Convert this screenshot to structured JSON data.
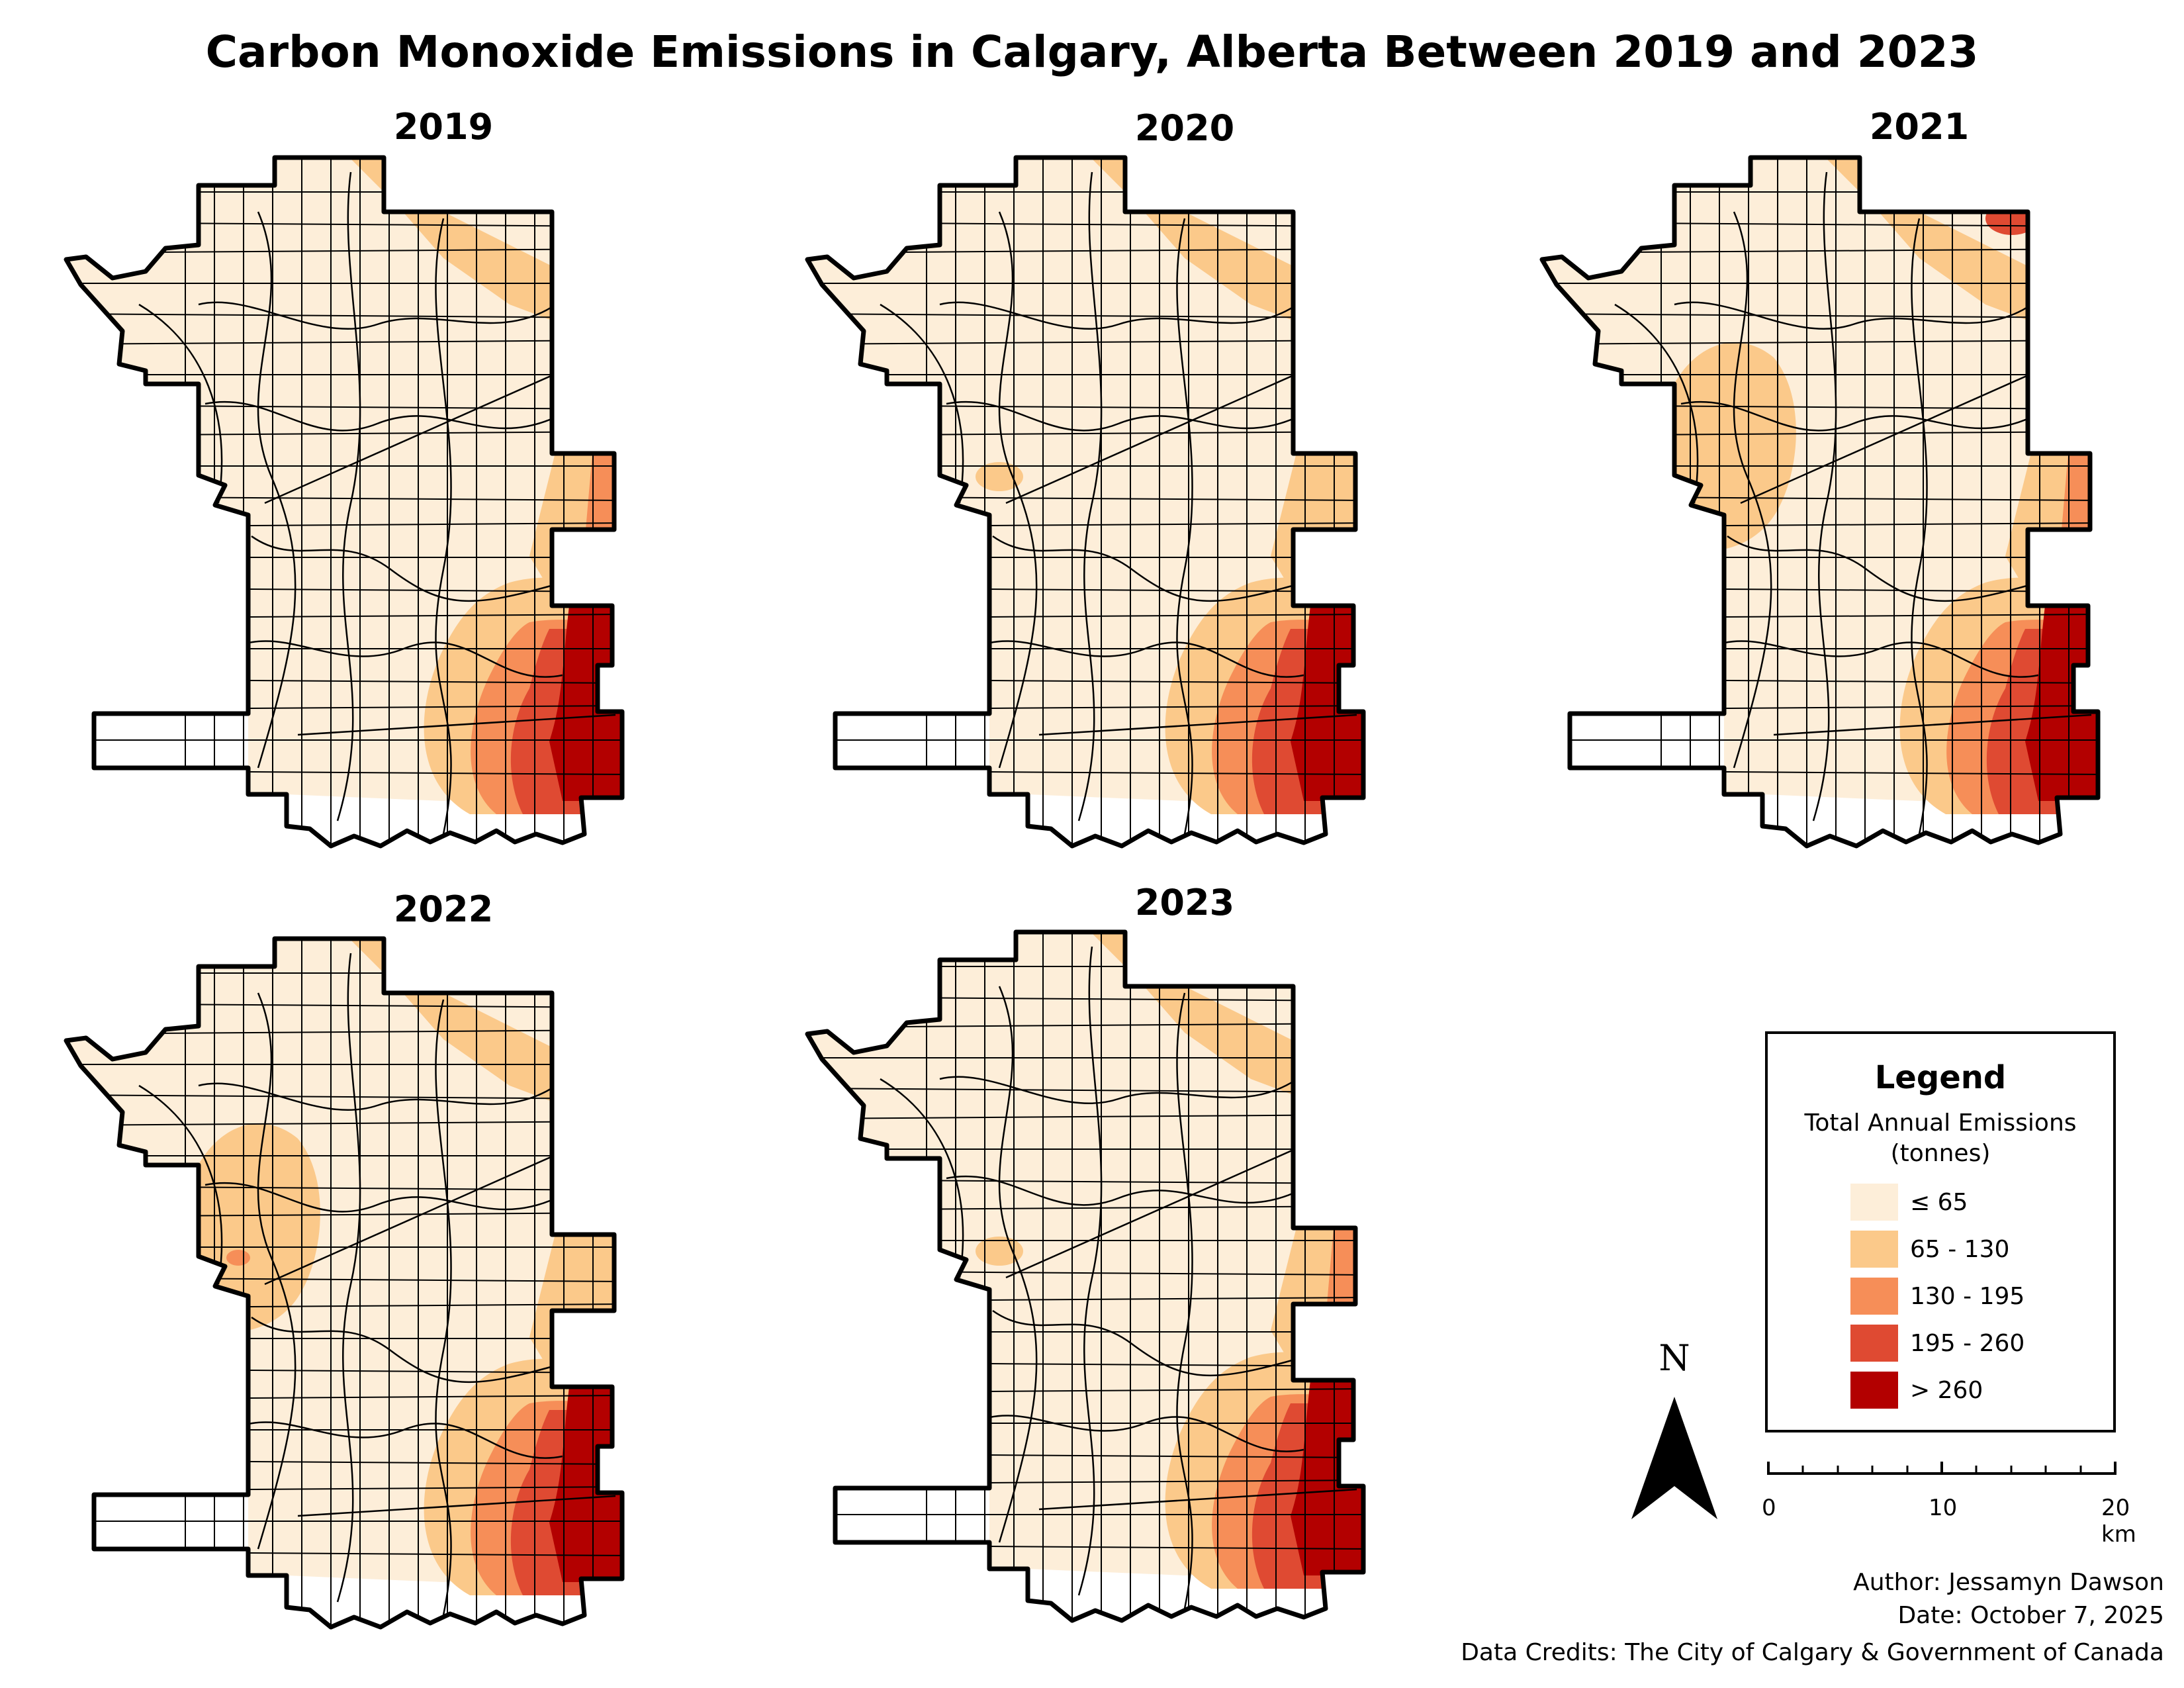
{
  "title": "Carbon Monoxide Emissions in Calgary, Alberta Between 2019 and 2023",
  "maps": [
    {
      "year": "2019",
      "hotspots": {
        "northeast": 2,
        "central": 0,
        "east": 3,
        "southeast": 5
      }
    },
    {
      "year": "2020",
      "hotspots": {
        "northeast": 2,
        "central": 1,
        "east": 2,
        "southeast": 5
      }
    },
    {
      "year": "2021",
      "hotspots": {
        "northeast": 3,
        "central": 2,
        "east": 3,
        "southeast": 5
      }
    },
    {
      "year": "2022",
      "hotspots": {
        "northeast": 2,
        "central": 3,
        "east": 2,
        "southeast": 5
      }
    },
    {
      "year": "2023",
      "hotspots": {
        "northeast": 2,
        "central": 1,
        "east": 3,
        "southeast": 5
      }
    }
  ],
  "legend": {
    "title": "Legend",
    "subtitle_line1": "Total Annual Emissions",
    "subtitle_line2": "(tonnes)",
    "classes": [
      {
        "label": "≤ 65",
        "color": "#fdeed9"
      },
      {
        "label": "65 - 130",
        "color": "#fbc98a"
      },
      {
        "label": "130 - 195",
        "color": "#f68e58"
      },
      {
        "label": "195 - 260",
        "color": "#df4a32"
      },
      {
        "label": "> 260",
        "color": "#b30000"
      }
    ]
  },
  "north_arrow": {
    "label": "N"
  },
  "scale_bar": {
    "labels": [
      "0",
      "10",
      "20 km"
    ]
  },
  "credits": {
    "author": "Author: Jessamyn Dawson",
    "date": "Date: October 7, 2025",
    "data": "Data Credits: The City of Calgary & Government of Canada"
  }
}
